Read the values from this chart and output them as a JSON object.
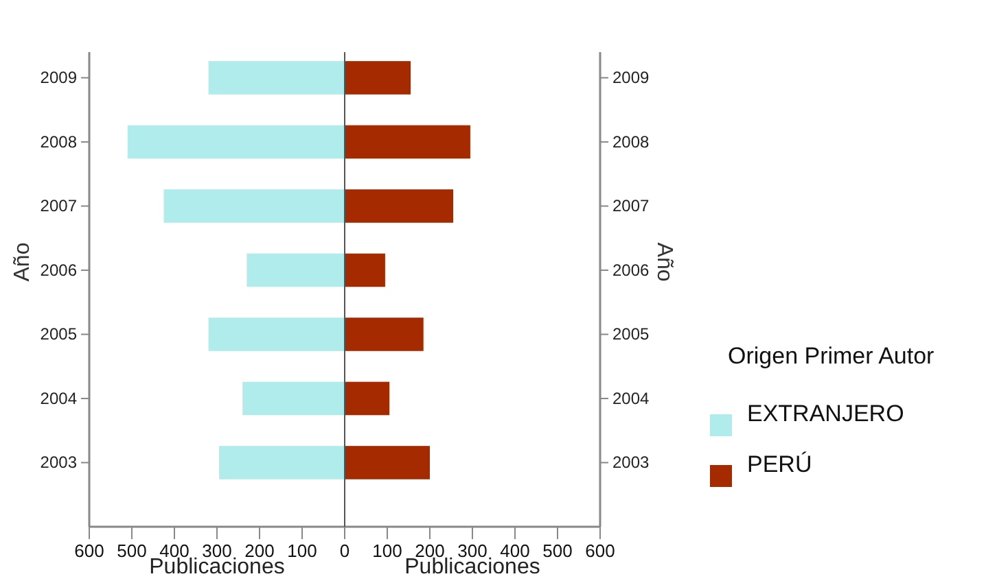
{
  "chart_data": [
    {
      "type": "bar",
      "orientation": "horizontal",
      "categories": [
        "2009",
        "2008",
        "2007",
        "2006",
        "2005",
        "2004",
        "2003"
      ],
      "xlabel": "Publicaciones",
      "ylabel": "Año",
      "xlim": [
        600,
        0
      ],
      "xticks": [
        600,
        500,
        400,
        300,
        200,
        100,
        0
      ],
      "legend": "right",
      "legend_title": "Origen Primer Autor",
      "series": [
        {
          "name": "EXTRANJERO",
          "color": "#b0ecec",
          "values": [
            320,
            510,
            425,
            230,
            320,
            240,
            295
          ]
        }
      ]
    },
    {
      "type": "bar",
      "orientation": "horizontal",
      "categories": [
        "2009",
        "2008",
        "2007",
        "2006",
        "2005",
        "2004",
        "2003"
      ],
      "xlabel": "Publicaciones",
      "ylabel": "Año",
      "xlim": [
        0,
        600
      ],
      "xticks": [
        {
          "value": 0,
          "label": null
        },
        100,
        200,
        300,
        400,
        500,
        600
      ],
      "legend": "right",
      "series": [
        {
          "name": "PERÚ",
          "color": "#a52a00",
          "values": [
            155,
            295,
            255,
            95,
            185,
            105,
            200
          ]
        }
      ]
    }
  ]
}
